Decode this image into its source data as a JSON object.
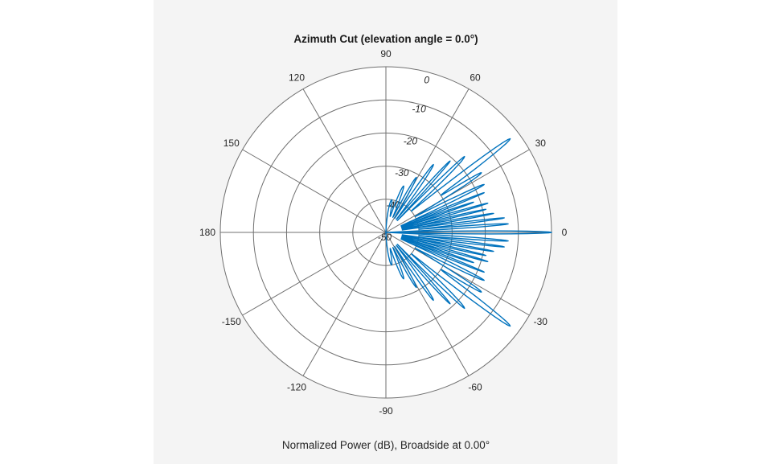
{
  "chart_data": {
    "type": "line",
    "coordinate_system": "polar",
    "title": "Azimuth Cut (elevation angle = 0.0°)",
    "caption": "Normalized Power (dB), Broadside at 0.00°",
    "angle_ticks": [
      0,
      30,
      60,
      90,
      120,
      150,
      180,
      -150,
      -120,
      -90,
      -60,
      -30
    ],
    "angle_tick_labels": [
      "0",
      "30",
      "60",
      "90",
      "120",
      "150",
      "180",
      "-150",
      "-120",
      "-90",
      "-60",
      "-30"
    ],
    "radial_ticks": [
      0,
      -10,
      -20,
      -30,
      -40,
      -50
    ],
    "radial_tick_labels": [
      "0",
      "-10",
      "-20",
      "-30",
      "-40",
      "-50"
    ],
    "rlim": [
      -50,
      0
    ],
    "grid": true,
    "series": [
      {
        "color": "#0072BD",
        "theta_deg": [
          -90,
          -80,
          -75,
          -69,
          -65,
          -61,
          -58,
          -55,
          -51,
          -48,
          -46,
          -44,
          -40,
          -37,
          -34,
          -32,
          -28.5,
          -26,
          -23.5,
          -22,
          -20.5,
          -19,
          -17.5,
          -16,
          -14.5,
          -13,
          -11.5,
          -10,
          -8.5,
          -7,
          -5.5,
          -4,
          -2,
          0,
          2,
          4,
          5.5,
          7,
          8.5,
          10,
          11.5,
          13,
          14.5,
          16,
          17.5,
          19,
          20.5,
          22,
          23.5,
          26,
          28.5,
          32,
          34,
          37,
          40,
          44,
          46,
          48,
          51,
          55,
          58,
          61,
          65,
          69,
          75,
          80,
          90
        ],
        "power_db": [
          -50,
          -40,
          -45,
          -35,
          -45,
          -31,
          -45,
          -25,
          -45,
          -21,
          -45,
          -17,
          -40,
          -3,
          -30,
          -16,
          -40,
          -17,
          -45,
          -18,
          -45,
          -22,
          -45,
          -18,
          -45,
          -19,
          -45,
          -17,
          -45,
          -14,
          -40,
          -13,
          -50,
          0,
          -50,
          -13,
          -40,
          -14,
          -45,
          -17,
          -45,
          -19,
          -45,
          -18,
          -45,
          -22,
          -45,
          -18,
          -45,
          -17,
          -40,
          -16,
          -30,
          -3,
          -40,
          -17,
          -45,
          -21,
          -45,
          -25,
          -45,
          -31,
          -45,
          -35,
          -45,
          -40,
          -50
        ]
      }
    ]
  }
}
